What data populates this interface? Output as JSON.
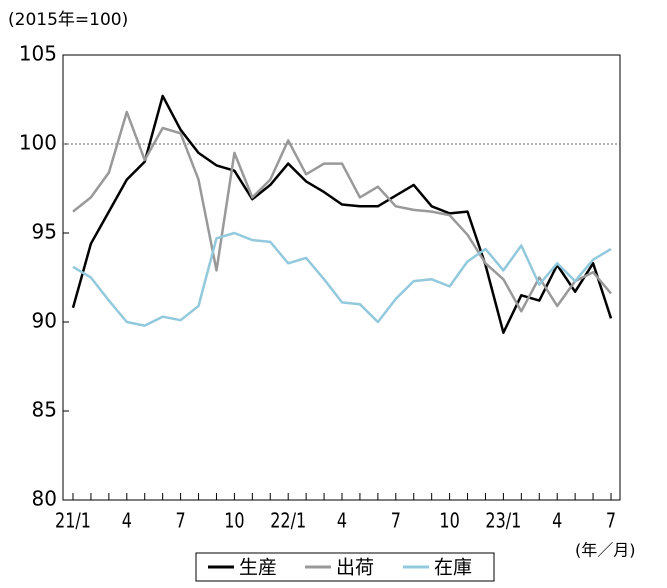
{
  "chart_data": {
    "type": "line",
    "y_unit_label": "(2015年=100)",
    "x_unit_label": "(年／月)",
    "categories": [
      "21/1",
      null,
      null,
      "4",
      null,
      null,
      "7",
      null,
      null,
      "10",
      null,
      null,
      "22/1",
      null,
      null,
      "4",
      null,
      null,
      "7",
      null,
      null,
      "10",
      null,
      null,
      "23/1",
      null,
      null,
      "4",
      null,
      null,
      "7"
    ],
    "series": [
      {
        "name": "生産",
        "color": "#000000",
        "values": [
          90.8,
          94.4,
          96.2,
          98.0,
          99.0,
          102.7,
          100.8,
          99.5,
          98.8,
          98.5,
          96.9,
          97.7,
          98.9,
          97.9,
          97.3,
          96.6,
          96.5,
          96.5,
          97.1,
          97.7,
          96.5,
          96.1,
          96.2,
          93.2,
          89.4,
          91.5,
          91.2,
          93.2,
          91.7,
          93.3,
          90.2
        ]
      },
      {
        "name": "出荷",
        "color": "#999999",
        "values": [
          96.2,
          97.0,
          98.4,
          101.8,
          99.1,
          100.9,
          100.6,
          98.0,
          92.9,
          99.5,
          97.0,
          98.0,
          100.2,
          98.3,
          98.9,
          98.9,
          97.0,
          97.6,
          96.5,
          96.3,
          96.2,
          96.0,
          94.9,
          93.3,
          92.4,
          90.6,
          92.5,
          90.9,
          92.3,
          92.8,
          91.6
        ]
      },
      {
        "name": "在庫",
        "color": "#92c9dc",
        "values": [
          93.1,
          92.5,
          91.2,
          90.0,
          89.8,
          90.3,
          90.1,
          90.9,
          94.7,
          95.0,
          94.6,
          94.5,
          93.3,
          93.6,
          92.4,
          91.1,
          91.0,
          90.0,
          91.3,
          92.3,
          92.4,
          92.0,
          93.4,
          94.1,
          92.9,
          94.3,
          92.1,
          93.3,
          92.3,
          93.5,
          94.1
        ]
      }
    ],
    "ylim": [
      80,
      105
    ],
    "yticks": [
      80,
      85,
      90,
      95,
      100,
      105
    ],
    "reference_line": 100,
    "legend": "bottom"
  }
}
